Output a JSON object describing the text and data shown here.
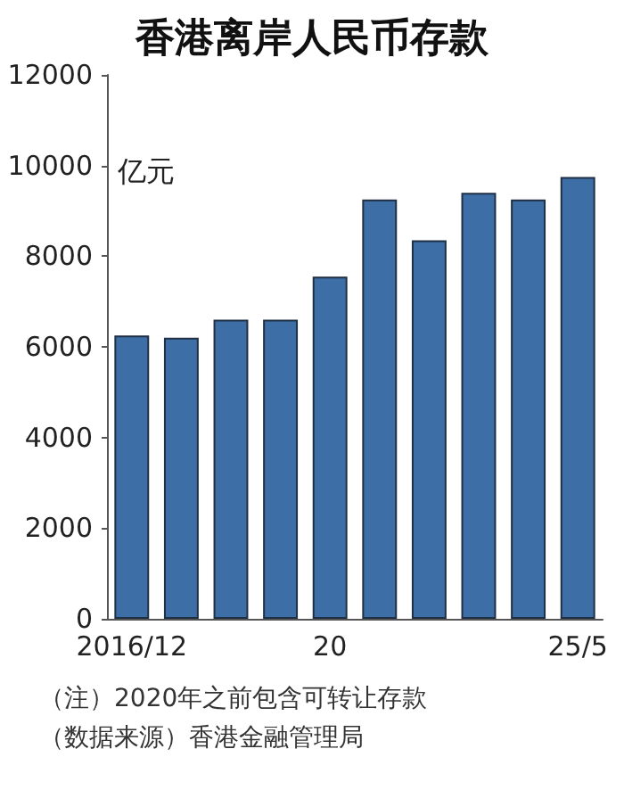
{
  "chart_data": {
    "type": "bar",
    "title": "香港离岸人民币存款",
    "ylabel": "亿元",
    "categories": [
      "2016/12",
      null,
      null,
      null,
      "20",
      null,
      null,
      null,
      null,
      "25/5"
    ],
    "values": [
      6250,
      6200,
      6600,
      6600,
      7550,
      9250,
      8350,
      9400,
      9250,
      9750
    ],
    "color": "#3d6fa6",
    "ylim": [
      0,
      12000
    ],
    "yticks": [
      0,
      2000,
      4000,
      6000,
      8000,
      10000,
      12000
    ],
    "grid": false,
    "annotations": [
      "（注）2020年之前包含可转让存款",
      "（数据来源）香港金融管理局"
    ]
  }
}
